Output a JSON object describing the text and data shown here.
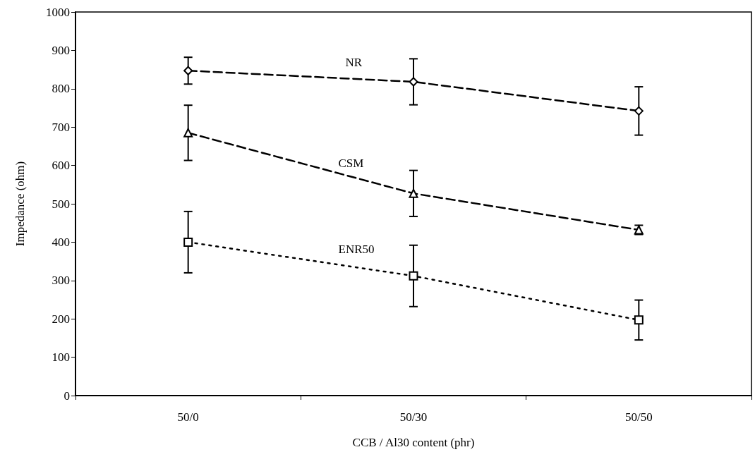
{
  "chart_data": {
    "type": "line",
    "xlabel": "CCB / Al30 content (phr)",
    "ylabel": "Impedance (ohm)",
    "categories": [
      "50/0",
      "50/30",
      "50/50"
    ],
    "ylim": [
      0,
      1000
    ],
    "yticks": [
      0,
      100,
      200,
      300,
      400,
      500,
      600,
      700,
      800,
      900,
      1000
    ],
    "grid": false,
    "legend": false,
    "series": [
      {
        "name": "NR",
        "color": "#000000",
        "marker": "diamond",
        "line_style": "dashed",
        "values": [
          847,
          818,
          742
        ],
        "errors": [
          35,
          60,
          63
        ]
      },
      {
        "name": "CSM",
        "color": "#000000",
        "marker": "triangle",
        "line_style": "dashed",
        "values": [
          685,
          527,
          432
        ],
        "errors": [
          72,
          60,
          12
        ]
      },
      {
        "name": "ENR50",
        "color": "#000000",
        "marker": "square",
        "line_style": "dotted",
        "values": [
          400,
          312,
          197
        ],
        "errors": [
          80,
          80,
          52
        ]
      }
    ]
  }
}
